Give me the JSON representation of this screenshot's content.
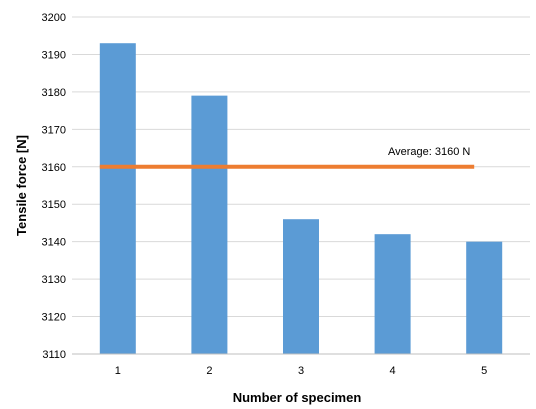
{
  "chart_data": {
    "type": "bar",
    "categories": [
      "1",
      "2",
      "3",
      "4",
      "5"
    ],
    "series": [
      {
        "values": [
          3193,
          3179,
          3146,
          3142,
          3140
        ],
        "color": "#5b9bd5"
      }
    ],
    "reference_line": {
      "value": 3160,
      "label": "Average: 3160 N",
      "color": "#ed7d31"
    },
    "xlabel": "Number of specimen",
    "ylabel": "Tensile force [N]",
    "ylim": [
      3110,
      3200
    ],
    "yticks": [
      3110,
      3120,
      3130,
      3140,
      3150,
      3160,
      3170,
      3180,
      3190,
      3200
    ],
    "grid": true,
    "legend": "none"
  }
}
